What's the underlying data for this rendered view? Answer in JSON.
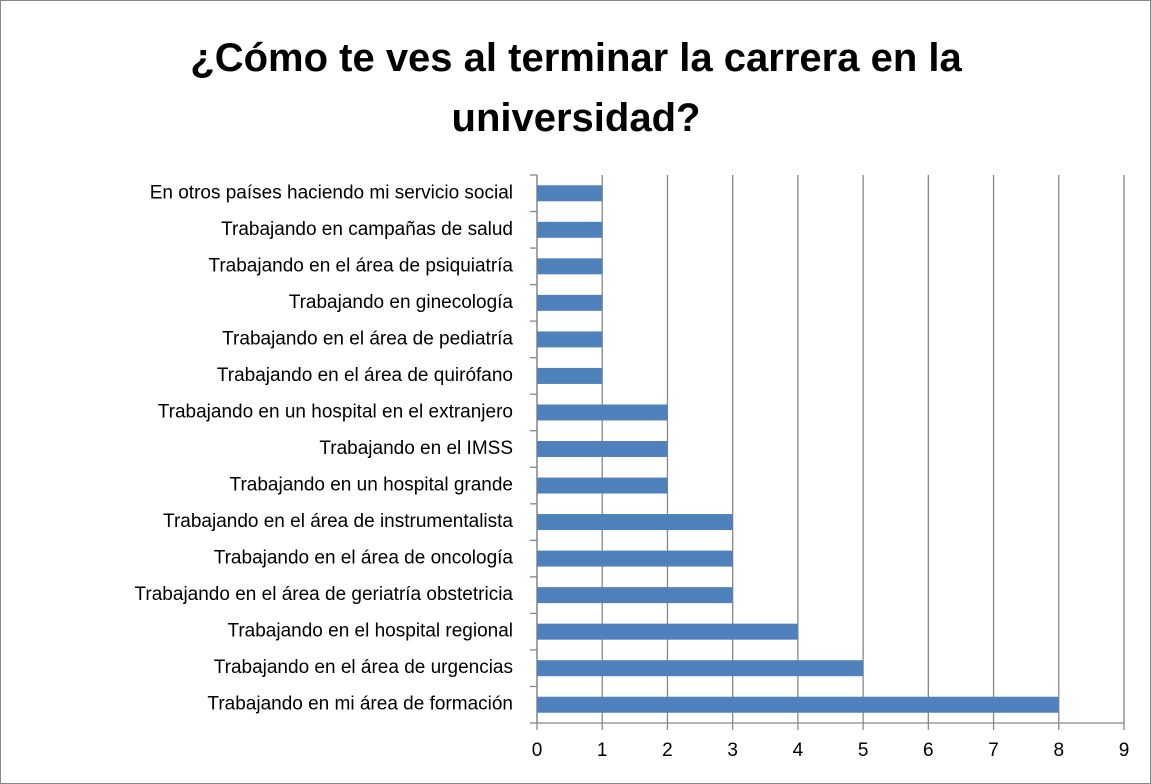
{
  "chart_data": {
    "type": "bar",
    "orientation": "horizontal",
    "title": "¿Cómo te ves al terminar la carrera en la universidad?",
    "categories": [
      "En otros países haciendo mi servicio social",
      "Trabajando en campañas de salud",
      "Trabajando en el área de psiquiatría",
      "Trabajando en ginecología",
      "Trabajando en el área de pediatría",
      "Trabajando en el área de quirófano",
      "Trabajando en un hospital en el extranjero",
      "Trabajando en el IMSS",
      "Trabajando en un hospital grande",
      "Trabajando en el área de instrumentalista",
      "Trabajando en el área de oncología",
      "Trabajando en el área de geriatría obstetricia",
      "Trabajando en el hospital regional",
      "Trabajando en el área de urgencias",
      "Trabajando en mi área de formación"
    ],
    "values": [
      1,
      1,
      1,
      1,
      1,
      1,
      2,
      2,
      2,
      3,
      3,
      3,
      4,
      5,
      8
    ],
    "color": "#4f81bd",
    "xlim": [
      0,
      9
    ],
    "xticks": [
      0,
      1,
      2,
      3,
      4,
      5,
      6,
      7,
      8,
      9
    ],
    "grid": true
  }
}
